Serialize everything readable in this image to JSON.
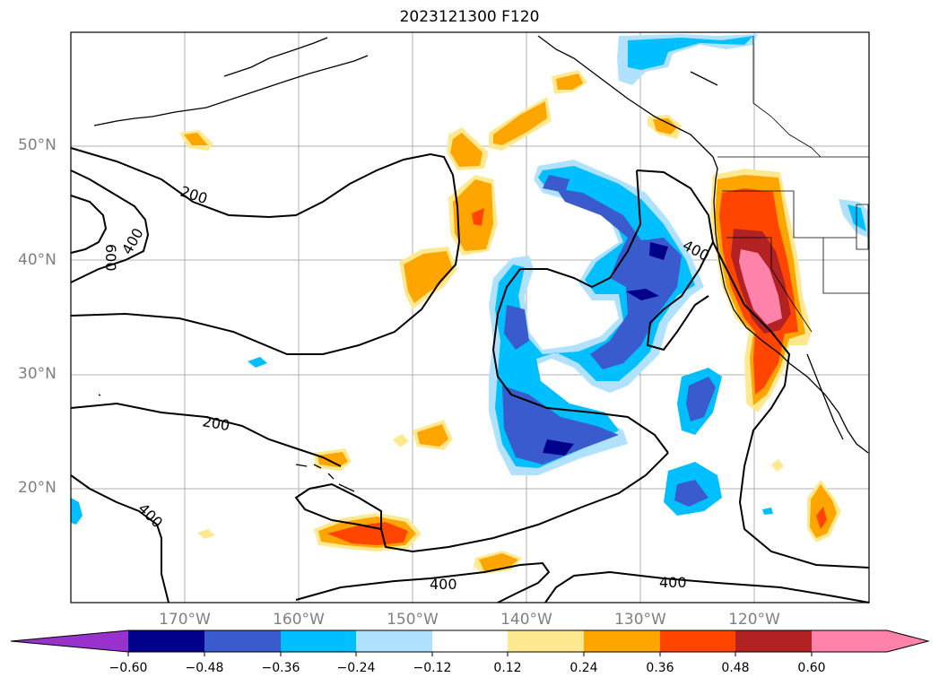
{
  "title": "2023121300 F120",
  "lat_labels": [
    "50°N",
    "40°N",
    "30°N",
    "20°N"
  ],
  "lon_labels": [
    "170°W",
    "160°W",
    "150°W",
    "140°W",
    "130°W",
    "120°W"
  ],
  "contour_labels": [
    "200",
    "600",
    "400",
    "400",
    "200",
    "400",
    "400",
    "400"
  ],
  "colorbar": {
    "ticks": [
      "−0.60",
      "−0.48",
      "−0.36",
      "−0.24",
      "−0.12",
      "0.12",
      "0.24",
      "0.36",
      "0.48",
      "0.60"
    ],
    "colors": [
      "#9932cc",
      "#00008b",
      "#3a5bcd",
      "#00bfff",
      "#b0e2ff",
      "#ffffff",
      "#ffe990",
      "#ffa500",
      "#ff4500",
      "#b22222",
      "#ff82ab"
    ]
  },
  "colors": {
    "negative_strong": "#00008b",
    "negative_mid": "#3a5bcd",
    "negative_light": "#00bfff",
    "negative_pale": "#b0e2ff",
    "positive_pale": "#ffe990",
    "positive_light": "#ffa500",
    "positive_mid": "#ff4500",
    "positive_strong": "#b22222",
    "positive_max": "#ff82ab",
    "grid": "#b0b0b0",
    "contour": "#000000",
    "axis_labels": "#808080"
  }
}
